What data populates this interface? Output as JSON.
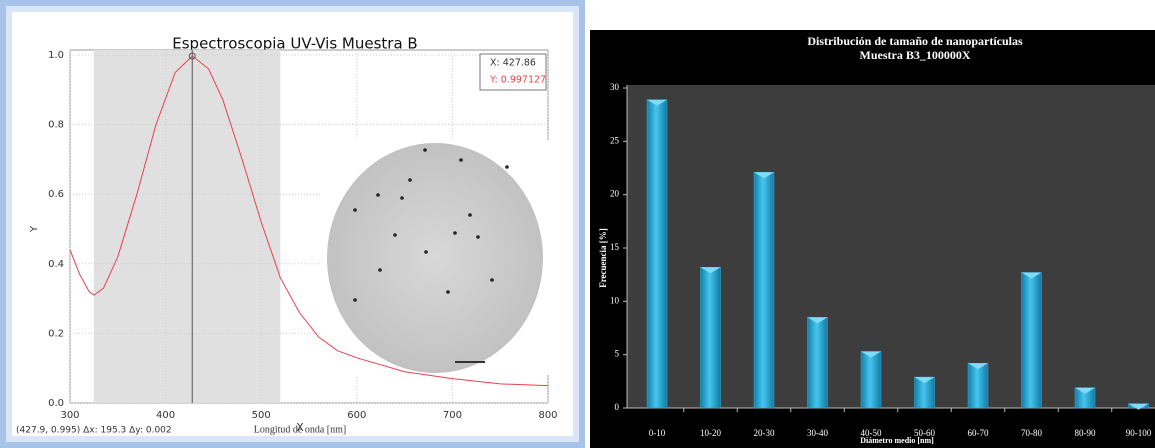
{
  "chart_data": [
    {
      "type": "line",
      "title": "Espectroscopia UV-Vis Muestra B",
      "xlabel": "Longitud de onda [nm]",
      "xlabel_overlay": "X",
      "ylabel": "Y",
      "annotations": [
        "X: 427.86",
        "Y: 0.997127",
        "(427.9, 0.995) Δx: 195.3 Δy: 0.002"
      ],
      "highlight": [
        325,
        520
      ],
      "cursor": [
        427.86,
        0.997127
      ],
      "x": [
        300,
        310,
        320,
        325,
        335,
        350,
        370,
        390,
        410,
        428,
        445,
        460,
        480,
        500,
        520,
        540,
        560,
        580,
        600,
        650,
        700,
        750,
        800
      ],
      "series": [
        {
          "color": "#e8414f",
          "values": [
            0.44,
            0.37,
            0.32,
            0.31,
            0.33,
            0.42,
            0.6,
            0.8,
            0.95,
            0.997,
            0.96,
            0.87,
            0.7,
            0.52,
            0.36,
            0.26,
            0.19,
            0.15,
            0.13,
            0.09,
            0.07,
            0.055,
            0.05
          ]
        }
      ],
      "xlim": [
        300,
        800
      ],
      "xticks": [
        300,
        400,
        500,
        600,
        700,
        800
      ],
      "ylim": [
        0,
        1.0
      ],
      "yticks": [
        {
          "value": 0,
          "label": "0.0"
        },
        0.2,
        0.4,
        0.6,
        0.8,
        {
          "value": 1,
          "label": "1.0"
        }
      ],
      "grid": true
    },
    {
      "type": "bar",
      "title": "Distribución de tamaño de nanopartículas",
      "subtitle": "Muestra B3_100000X",
      "xlabel": "Diámetro medio [nm]",
      "ylabel": "Frecuencia [%]",
      "categories": [
        "0-10",
        "10-20",
        "20-30",
        "30-40",
        "40-50",
        "50-60",
        "60-70",
        "70-80",
        "80-90",
        "90-100"
      ],
      "values": [
        28.9,
        13.2,
        22.1,
        8.5,
        5.3,
        2.9,
        4.2,
        12.7,
        1.9,
        0.4
      ],
      "color": "#2fb3dc",
      "ylim": [
        0,
        30
      ],
      "yticks": [
        0,
        5,
        10,
        15,
        20,
        25,
        30
      ],
      "grid": false
    }
  ]
}
